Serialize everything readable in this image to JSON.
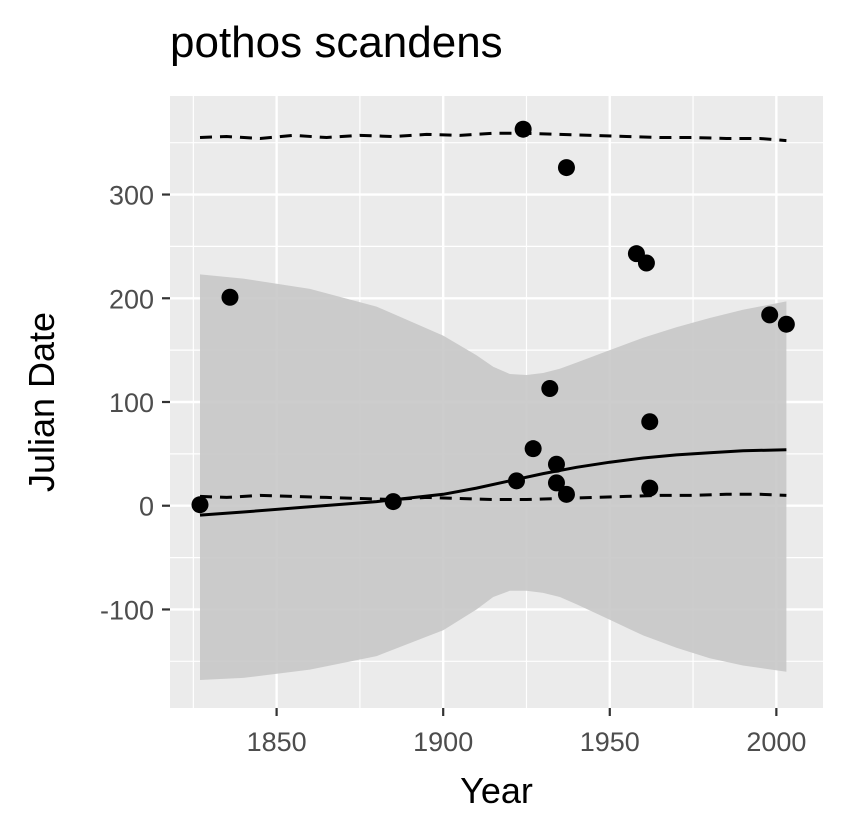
{
  "chart_data": {
    "type": "scatter",
    "title": "pothos scandens",
    "xlabel": "Year",
    "ylabel": "Julian Date",
    "xlim": [
      1818,
      2014
    ],
    "ylim": [
      -195,
      395
    ],
    "x_ticks": [
      1850,
      1900,
      1950,
      2000
    ],
    "x_tick_labels": [
      "1850",
      "1900",
      "1950",
      "2000"
    ],
    "y_ticks": [
      -100,
      0,
      100,
      200,
      300
    ],
    "y_tick_labels": [
      "-100",
      "0",
      "100",
      "200",
      "300"
    ],
    "grid": true,
    "legend": "none",
    "colors": {
      "panel": "#ebebeb",
      "grid": "#ffffff",
      "ribbon": "#c8c8c8",
      "points": "#000000",
      "lines": "#000000",
      "tick_text": "#4d4d4d"
    },
    "points": [
      {
        "x": 1827,
        "y": 1
      },
      {
        "x": 1836,
        "y": 201
      },
      {
        "x": 1885,
        "y": 4
      },
      {
        "x": 1922,
        "y": 24
      },
      {
        "x": 1924,
        "y": 363
      },
      {
        "x": 1927,
        "y": 55
      },
      {
        "x": 1932,
        "y": 113
      },
      {
        "x": 1934,
        "y": 22
      },
      {
        "x": 1934,
        "y": 40
      },
      {
        "x": 1937,
        "y": 326
      },
      {
        "x": 1937,
        "y": 11
      },
      {
        "x": 1958,
        "y": 243
      },
      {
        "x": 1961,
        "y": 234
      },
      {
        "x": 1962,
        "y": 81
      },
      {
        "x": 1962,
        "y": 17
      },
      {
        "x": 1998,
        "y": 184
      },
      {
        "x": 2003,
        "y": 175
      }
    ],
    "fit_line": {
      "x": [
        1827,
        1840,
        1860,
        1880,
        1900,
        1910,
        1920,
        1930,
        1940,
        1950,
        1960,
        1970,
        1980,
        1990,
        2003
      ],
      "y": [
        -9,
        -6,
        -1,
        4,
        11,
        17,
        24,
        31,
        37,
        42,
        46,
        49,
        51,
        53,
        54
      ]
    },
    "ribbon": {
      "x": [
        1827,
        1840,
        1860,
        1880,
        1900,
        1910,
        1915,
        1920,
        1925,
        1930,
        1935,
        1940,
        1950,
        1960,
        1970,
        1980,
        1990,
        2003
      ],
      "upper": [
        223,
        219,
        209,
        192,
        164,
        145,
        134,
        127,
        126,
        128,
        132,
        138,
        150,
        162,
        172,
        181,
        189,
        197
      ],
      "lower": [
        -168,
        -166,
        -158,
        -145,
        -120,
        -100,
        -88,
        -82,
        -82,
        -84,
        -88,
        -95,
        -110,
        -125,
        -137,
        -147,
        -154,
        -160
      ]
    },
    "upper_dashed": {
      "x": [
        1827,
        1835,
        1845,
        1855,
        1865,
        1875,
        1885,
        1895,
        1905,
        1915,
        1925,
        1935,
        1945,
        1955,
        1965,
        1975,
        1985,
        1995,
        2003
      ],
      "y": [
        355,
        356,
        354,
        357,
        355,
        357,
        356,
        358,
        357,
        359,
        359,
        358,
        357,
        356,
        355,
        355,
        354,
        354,
        352
      ]
    },
    "lower_dashed": {
      "x": [
        1827,
        1835,
        1845,
        1855,
        1865,
        1875,
        1885,
        1895,
        1905,
        1915,
        1925,
        1935,
        1945,
        1955,
        1965,
        1975,
        1985,
        1995,
        2003
      ],
      "y": [
        9,
        8,
        10,
        9,
        8,
        7,
        6,
        8,
        7,
        6,
        6,
        7,
        8,
        9,
        10,
        10,
        11,
        11,
        10
      ]
    }
  }
}
